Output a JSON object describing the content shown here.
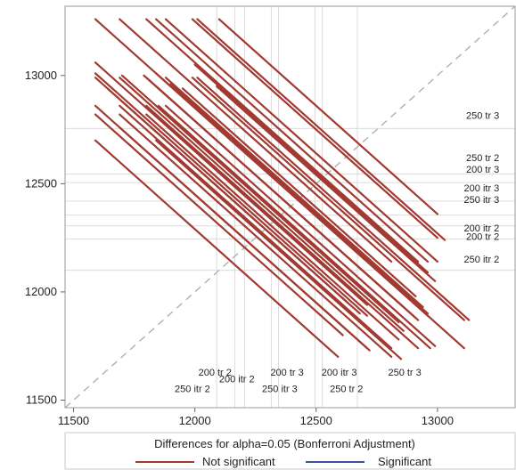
{
  "chart_data": {
    "type": "line",
    "title": "",
    "xlabel": "",
    "ylabel": "",
    "xlim": [
      11465,
      13320
    ],
    "ylim": [
      11465,
      13320
    ],
    "xticks": [
      11500,
      12000,
      12500,
      13000
    ],
    "yticks": [
      11500,
      12000,
      12500,
      13000
    ],
    "tick_labels": {
      "x": [
        "11500",
        "12000",
        "12500",
        "13000"
      ],
      "y": [
        "11500",
        "12000",
        "12500",
        "13000"
      ]
    },
    "diagonal": "reference line y = x (dashed gray)",
    "reference_lines": {
      "x": [
        {
          "label": "250 itr 2",
          "value": 12090,
          "label_x": 11990,
          "label_y": 11537
        },
        {
          "label": "200 tr 2",
          "value": 12205,
          "label_x": 12083,
          "label_y": 11613
        },
        {
          "label": "200 itr 2",
          "value": 12165,
          "label_x": 12173,
          "label_y": 11583
        },
        {
          "label": "250 itr 3",
          "value": 12345,
          "label_x": 12350,
          "label_y": 11537
        },
        {
          "label": "200 tr 3",
          "value": 12315,
          "label_x": 12380,
          "label_y": 11613
        },
        {
          "label": "200 itr 3",
          "value": 12495,
          "label_x": 12595,
          "label_y": 11613
        },
        {
          "label": "250 tr 2",
          "value": 12525,
          "label_x": 12625,
          "label_y": 11537
        },
        {
          "label": "250 tr 3",
          "value": 12670,
          "label_x": 12865,
          "label_y": 11613
        }
      ],
      "y": [
        {
          "label": "250 tr 3",
          "value": 12755,
          "label_x": 13255,
          "label_y": 12800
        },
        {
          "label": "250 tr 2",
          "value": 12545,
          "label_x": 13255,
          "label_y": 12605
        },
        {
          "label": "200 tr 3",
          "value": 12505,
          "label_x": 13255,
          "label_y": 12550
        },
        {
          "label": "200 itr 3",
          "value": 12420,
          "label_x": 13255,
          "label_y": 12465
        },
        {
          "label": "250 itr 3",
          "value": 12355,
          "label_x": 13255,
          "label_y": 12410
        },
        {
          "label": "200 itr 2",
          "value": 12305,
          "label_x": 13255,
          "label_y": 12280
        },
        {
          "label": "200 tr 2",
          "value": 12245,
          "label_x": 13255,
          "label_y": 12240
        },
        {
          "label": "250 itr 2",
          "value": 12100,
          "label_x": 13255,
          "label_y": 12135
        }
      ]
    },
    "series": [
      {
        "name": "Not significant",
        "color": "#a23a32",
        "segments": [
          [
            11590,
            13260,
            12710,
            12140
          ],
          [
            11690,
            13260,
            12810,
            12140
          ],
          [
            11800,
            13260,
            12920,
            12140
          ],
          [
            11840,
            13260,
            12960,
            12140
          ],
          [
            11880,
            13260,
            13000,
            12140
          ],
          [
            11990,
            13260,
            13000,
            12250
          ],
          [
            12010,
            13260,
            13030,
            12240
          ],
          [
            12100,
            13260,
            13000,
            12360
          ],
          [
            11590,
            13060,
            12710,
            11940
          ],
          [
            11590,
            13010,
            12710,
            11890
          ],
          [
            11590,
            12990,
            12630,
            11950
          ],
          [
            11590,
            12860,
            12710,
            11740
          ],
          [
            11590,
            12820,
            12610,
            11800
          ],
          [
            11590,
            12700,
            12590,
            11700
          ],
          [
            11690,
            12990,
            12860,
            11820
          ],
          [
            11690,
            12860,
            12810,
            11740
          ],
          [
            11690,
            12820,
            12810,
            11700
          ],
          [
            11700,
            13000,
            12840,
            11860
          ],
          [
            11790,
            13000,
            12910,
            11880
          ],
          [
            11800,
            12860,
            12920,
            11740
          ],
          [
            11800,
            12820,
            12840,
            11780
          ],
          [
            11840,
            13010,
            12960,
            11890
          ],
          [
            11850,
            12860,
            12970,
            11740
          ],
          [
            11880,
            12990,
            12940,
            11930
          ],
          [
            11880,
            12860,
            12990,
            11750
          ],
          [
            11990,
            12990,
            13110,
            11870
          ],
          [
            11990,
            12860,
            13110,
            11740
          ],
          [
            12010,
            12990,
            13130,
            11870
          ],
          [
            11840,
            12950,
            12860,
            11930
          ],
          [
            11800,
            12990,
            12920,
            11870
          ],
          [
            11900,
            12960,
            12960,
            11900
          ],
          [
            11950,
            12940,
            12910,
            11980
          ],
          [
            12000,
            13050,
            12960,
            12090
          ],
          [
            11840,
            12700,
            12850,
            11690
          ],
          [
            11690,
            12760,
            12720,
            11730
          ],
          [
            12090,
            12950,
            12990,
            12050
          ],
          [
            11640,
            12940,
            12680,
            11900
          ]
        ]
      },
      {
        "name": "Significant",
        "color": "#3b4f9a",
        "segments": []
      }
    ],
    "legend": {
      "title": "Differences for alpha=0.05 (Bonferroni Adjustment)",
      "position": "bottom",
      "entries": [
        {
          "label": "Not significant",
          "color": "#a23a32"
        },
        {
          "label": "Significant",
          "color": "#3b4f9a"
        }
      ]
    }
  }
}
